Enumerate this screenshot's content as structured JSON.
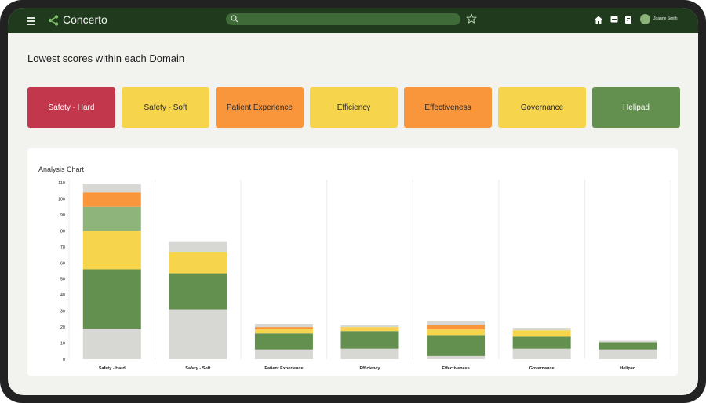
{
  "app": {
    "brand": "Concerto",
    "user_name": "Joanne Smith"
  },
  "search": {
    "value": "",
    "placeholder": ""
  },
  "icons": [
    "menu-icon",
    "logo-icon",
    "search-icon",
    "star-icon",
    "home-icon",
    "chat-icon",
    "document-icon"
  ],
  "section_title": "Lowest scores within each Domain",
  "domains": [
    {
      "label": "Safety - Hard",
      "color": "#c2374b",
      "text_color": "#ffffff"
    },
    {
      "label": "Safety - Soft",
      "color": "#f6d44c",
      "text_color": "#2a2a2a"
    },
    {
      "label": "Patient Experience",
      "color": "#f9953a",
      "text_color": "#2a2a2a"
    },
    {
      "label": "Efficiency",
      "color": "#f6d44c",
      "text_color": "#2a2a2a"
    },
    {
      "label": "Effectiveness",
      "color": "#f9953a",
      "text_color": "#2a2a2a"
    },
    {
      "label": "Governance",
      "color": "#f6d44c",
      "text_color": "#2a2a2a"
    },
    {
      "label": "Helipad",
      "color": "#64904f",
      "text_color": "#ffffff"
    }
  ],
  "chart_data": {
    "type": "bar",
    "stacked": true,
    "title": "Analysis Chart",
    "xlabel": "",
    "ylabel": "",
    "ylim": [
      0,
      110
    ],
    "yticks": [
      0,
      10,
      20,
      30,
      40,
      50,
      60,
      70,
      80,
      90,
      100,
      110
    ],
    "grid": "vertical",
    "legend": "none",
    "categories": [
      "Safety - Hard",
      "Safety - Soft",
      "Patient Experience",
      "Efficiency",
      "Effectiveness",
      "Governance",
      "Helipad"
    ],
    "series": [
      {
        "color": "#d7d8d3",
        "values": [
          19,
          31,
          6,
          6.5,
          2,
          6.5,
          6
        ]
      },
      {
        "color": "#64904f",
        "values": [
          37,
          22.5,
          10,
          11,
          13,
          7.5,
          4.5
        ]
      },
      {
        "color": "#f6d44c",
        "values": [
          24,
          13,
          2.5,
          2.5,
          3.5,
          4,
          0
        ]
      },
      {
        "color": "#8fb47b",
        "values": [
          15,
          0,
          0,
          0,
          0,
          0,
          0
        ]
      },
      {
        "color": "#f9953a",
        "values": [
          9,
          0,
          1.5,
          0,
          3,
          0,
          0
        ]
      },
      {
        "color": "#d7d8d3",
        "values": [
          5,
          6.5,
          2,
          1,
          2,
          1.5,
          1
        ]
      }
    ]
  }
}
